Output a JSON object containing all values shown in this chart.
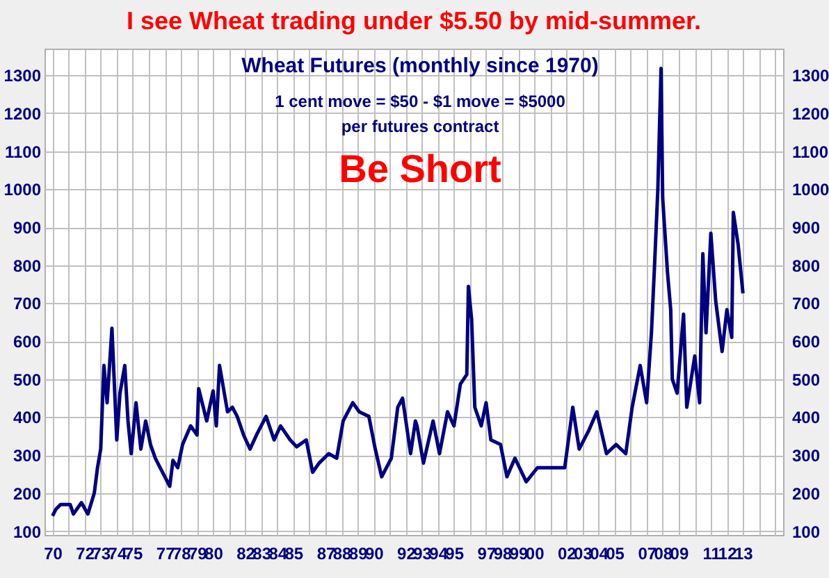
{
  "chart_data": {
    "type": "line",
    "title": "I see Wheat trading under $5.50 by mid-summer.",
    "subtitle": "Wheat Futures (monthly since 1970)",
    "annotations": [
      "1 cent move = $50 - $1 move = $5000",
      "per futures contract",
      "Be Short"
    ],
    "x": [
      1970.0,
      1970.2,
      1970.5,
      1971.1,
      1971.3,
      1971.8,
      1972.2,
      1972.6,
      1972.8,
      1973.0,
      1973.2,
      1973.4,
      1973.7,
      1973.8,
      1974.0,
      1974.2,
      1974.5,
      1974.7,
      1974.9,
      1975.2,
      1975.5,
      1975.8,
      1976.1,
      1976.4,
      1976.7,
      1977.3,
      1977.5,
      1977.8,
      1978.1,
      1978.6,
      1979.0,
      1979.1,
      1979.6,
      1980.0,
      1980.2,
      1980.4,
      1980.9,
      1981.2,
      1981.5,
      1981.9,
      1982.3,
      1982.7,
      1983.3,
      1983.8,
      1984.2,
      1984.8,
      1985.2,
      1985.8,
      1986.2,
      1986.6,
      1987.2,
      1987.7,
      1988.1,
      1988.7,
      1989.1,
      1989.7,
      1990.1,
      1990.5,
      1991.1,
      1991.5,
      1991.8,
      1992.3,
      1992.6,
      1992.7,
      1993.1,
      1993.7,
      1994.1,
      1994.6,
      1995.0,
      1995.4,
      1995.8,
      1995.9,
      1996.1,
      1996.3,
      1996.7,
      1997.0,
      1997.3,
      1997.9,
      1998.3,
      1998.8,
      1999.5,
      2000.2,
      2001.1,
      2001.9,
      2002.4,
      2002.8,
      2003.4,
      2003.9,
      2004.5,
      2005.1,
      2005.7,
      2006.1,
      2006.6,
      2007.0,
      2007.3,
      2007.5,
      2007.7,
      2007.9,
      2008.0,
      2008.3,
      2008.5,
      2008.6,
      2008.9,
      2009.3,
      2009.5,
      2010.0,
      2010.3,
      2010.5,
      2010.7,
      2011.0,
      2011.3,
      2011.7,
      2012.0,
      2012.3,
      2012.4,
      2012.7,
      2013.0
    ],
    "series": [
      {
        "color": "#000080",
        "values": [
          140,
          157,
          170,
          170,
          145,
          175,
          145,
          200,
          267,
          316,
          536,
          438,
          634,
          536,
          340,
          463,
          536,
          390,
          304,
          438,
          316,
          390,
          328,
          292,
          267,
          218,
          286,
          267,
          328,
          377,
          353,
          475,
          390,
          469,
          377,
          536,
          414,
          426,
          402,
          353,
          316,
          353,
          402,
          340,
          377,
          340,
          322,
          340,
          255,
          279,
          304,
          292,
          390,
          438,
          414,
          402,
          316,
          243,
          292,
          426,
          450,
          304,
          390,
          377,
          279,
          390,
          304,
          414,
          377,
          487,
          512,
          744,
          658,
          426,
          377,
          438,
          340,
          328,
          243,
          292,
          230,
          267,
          267,
          267,
          426,
          316,
          365,
          414,
          304,
          328,
          304,
          426,
          536,
          438,
          622,
          805,
          1001,
          1318,
          977,
          781,
          683,
          500,
          463,
          671,
          426,
          561,
          438,
          830,
          622,
          884,
          707,
          573,
          683,
          610,
          939,
          854,
          726
        ]
      }
    ],
    "xlim": [
      1969.5,
      2015.5
    ],
    "xticks": [
      {
        "value": 1970,
        "label": "70"
      },
      {
        "value": 1971,
        "label": null
      },
      {
        "value": 1972,
        "label": "72"
      },
      {
        "value": 1973,
        "label": "73"
      },
      {
        "value": 1974,
        "label": "74"
      },
      {
        "value": 1975,
        "label": "75"
      },
      {
        "value": 1976,
        "label": null
      },
      {
        "value": 1977,
        "label": "77"
      },
      {
        "value": 1978,
        "label": "78"
      },
      {
        "value": 1979,
        "label": "79"
      },
      {
        "value": 1980,
        "label": "80"
      },
      {
        "value": 1981,
        "label": null
      },
      {
        "value": 1982,
        "label": "82"
      },
      {
        "value": 1983,
        "label": "83"
      },
      {
        "value": 1984,
        "label": "84"
      },
      {
        "value": 1985,
        "label": "85"
      },
      {
        "value": 1986,
        "label": null
      },
      {
        "value": 1987,
        "label": "87"
      },
      {
        "value": 1988,
        "label": "88"
      },
      {
        "value": 1989,
        "label": "89"
      },
      {
        "value": 1990,
        "label": "90"
      },
      {
        "value": 1991,
        "label": null
      },
      {
        "value": 1992,
        "label": "92"
      },
      {
        "value": 1993,
        "label": "93"
      },
      {
        "value": 1994,
        "label": "94"
      },
      {
        "value": 1995,
        "label": "95"
      },
      {
        "value": 1996,
        "label": null
      },
      {
        "value": 1997,
        "label": "97"
      },
      {
        "value": 1998,
        "label": "98"
      },
      {
        "value": 1999,
        "label": "99"
      },
      {
        "value": 2000,
        "label": "00"
      },
      {
        "value": 2001,
        "label": null
      },
      {
        "value": 2002,
        "label": "02"
      },
      {
        "value": 2003,
        "label": "03"
      },
      {
        "value": 2004,
        "label": "04"
      },
      {
        "value": 2005,
        "label": "05"
      },
      {
        "value": 2006,
        "label": null
      },
      {
        "value": 2007,
        "label": "07"
      },
      {
        "value": 2008,
        "label": "08"
      },
      {
        "value": 2009,
        "label": "09"
      },
      {
        "value": 2010,
        "label": null
      },
      {
        "value": 2011,
        "label": "11"
      },
      {
        "value": 2012,
        "label": "12"
      },
      {
        "value": 2013,
        "label": "13"
      },
      {
        "value": 2014,
        "label": null
      },
      {
        "value": 2015,
        "label": null
      }
    ],
    "ylim": [
      90,
      1370
    ],
    "yticks": [
      100,
      200,
      300,
      400,
      500,
      600,
      700,
      800,
      900,
      1000,
      1100,
      1200,
      1300
    ],
    "y2lim": [
      90,
      1370
    ],
    "y2ticks": [
      100,
      200,
      300,
      400,
      500,
      600,
      700,
      800,
      900,
      1000,
      1100,
      1200,
      1300
    ],
    "grid": true,
    "marker": "none",
    "line_style": "solid"
  }
}
